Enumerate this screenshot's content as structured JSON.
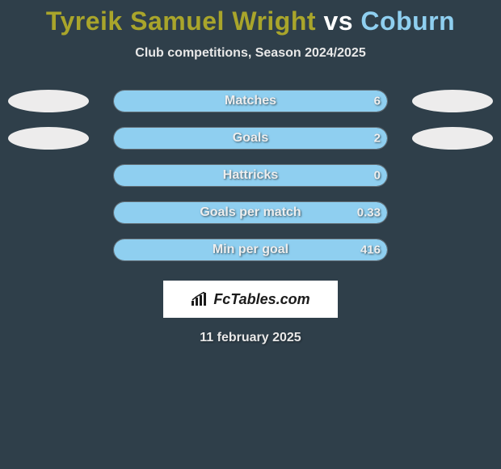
{
  "colors": {
    "background": "#2f3f4a",
    "title_p1": "#a9a52b",
    "title_vs": "#ffffff",
    "title_p2": "#8fcff0",
    "subtitle": "#e8e8e8",
    "bar_border": "rgba(255,255,255,0.25)",
    "bar_fill_left": "#a9a52b",
    "bar_fill_right": "#8fcff0",
    "label_text": "#eeeeee",
    "value_text": "#efefef",
    "oval": "#edecec",
    "brand_bg": "#ffffff",
    "brand_text": "#1b1b1b",
    "date_text": "#e8e8e8"
  },
  "title": {
    "player1": "Tyreik Samuel Wright",
    "vs": "vs",
    "player2": "Coburn"
  },
  "subtitle": "Club competitions, Season 2024/2025",
  "bars": {
    "track_width": 340,
    "items": [
      {
        "label": "Matches",
        "left": "",
        "right": "6",
        "left_pct": 0,
        "right_pct": 100,
        "show_oval_left": true,
        "show_oval_right": true
      },
      {
        "label": "Goals",
        "left": "",
        "right": "2",
        "left_pct": 0,
        "right_pct": 100,
        "show_oval_left": true,
        "show_oval_right": true
      },
      {
        "label": "Hattricks",
        "left": "",
        "right": "0",
        "left_pct": 0,
        "right_pct": 100,
        "show_oval_left": false,
        "show_oval_right": false
      },
      {
        "label": "Goals per match",
        "left": "",
        "right": "0.33",
        "left_pct": 0,
        "right_pct": 100,
        "show_oval_left": false,
        "show_oval_right": false
      },
      {
        "label": "Min per goal",
        "left": "",
        "right": "416",
        "left_pct": 0,
        "right_pct": 100,
        "show_oval_left": false,
        "show_oval_right": false
      }
    ]
  },
  "brand": {
    "text": "FcTables.com"
  },
  "date": "11 february 2025"
}
